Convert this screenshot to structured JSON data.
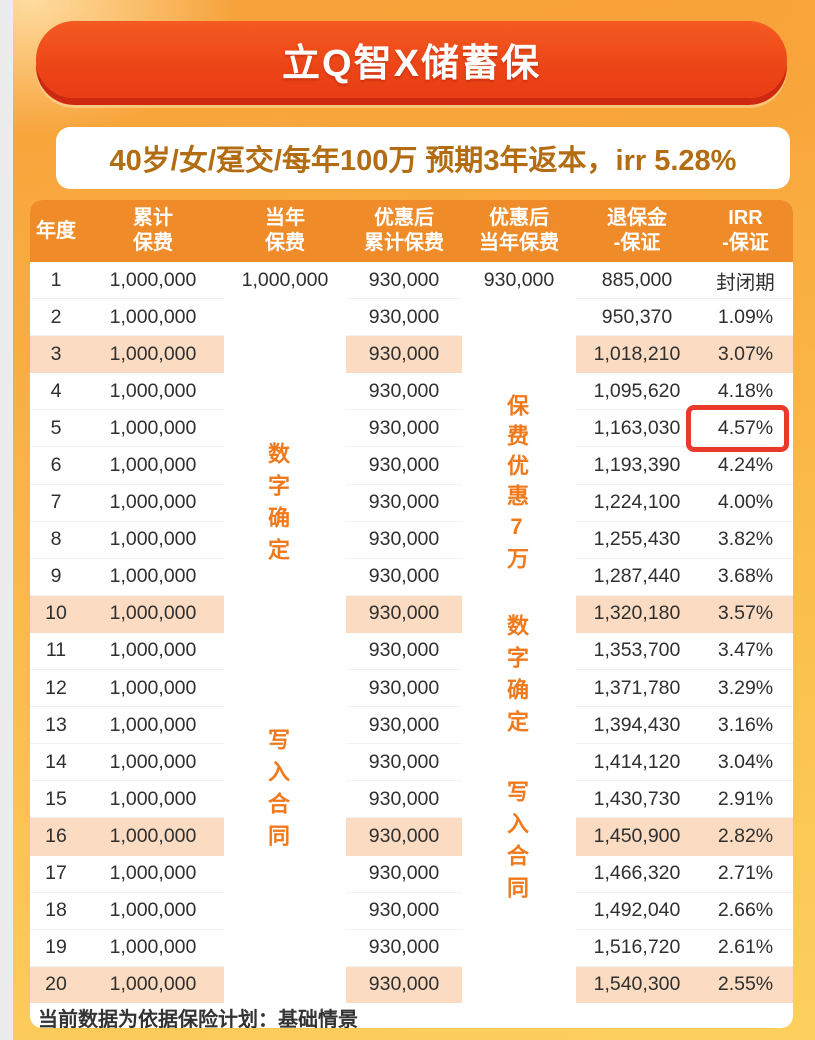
{
  "header": {
    "title": "立Q智X储蓄保",
    "subtitle": "40岁/女/趸交/每年100万 预期3年返本，irr 5.28%"
  },
  "colors": {
    "header_orange": "#ef8b28",
    "highlight_row": "#fbdcc2",
    "overlay_orange": "#f0791c",
    "banner_red": "#ea4317",
    "annotation_red": "#e8392a",
    "subtitle_brown": "#b26c12"
  },
  "table": {
    "columns": [
      "年度",
      "累计\n保费",
      "当年\n保费",
      "优惠后\n累计保费",
      "优惠后\n当年保费",
      "退保金\n-保证",
      "IRR\n-保证"
    ],
    "rows": [
      {
        "cells": [
          "1",
          "1,000,000",
          "1,000,000",
          "930,000",
          "930,000",
          "885,000",
          "封闭期"
        ],
        "highlight": false
      },
      {
        "cells": [
          "2",
          "1,000,000",
          "",
          "930,000",
          "",
          "950,370",
          "1.09%"
        ],
        "highlight": false
      },
      {
        "cells": [
          "3",
          "1,000,000",
          "",
          "930,000",
          "",
          "1,018,210",
          "3.07%"
        ],
        "highlight": true
      },
      {
        "cells": [
          "4",
          "1,000,000",
          "",
          "930,000",
          "",
          "1,095,620",
          "4.18%"
        ],
        "highlight": false
      },
      {
        "cells": [
          "5",
          "1,000,000",
          "",
          "930,000",
          "",
          "1,163,030",
          "4.57%"
        ],
        "highlight": false
      },
      {
        "cells": [
          "6",
          "1,000,000",
          "",
          "930,000",
          "",
          "1,193,390",
          "4.24%"
        ],
        "highlight": false
      },
      {
        "cells": [
          "7",
          "1,000,000",
          "",
          "930,000",
          "",
          "1,224,100",
          "4.00%"
        ],
        "highlight": false
      },
      {
        "cells": [
          "8",
          "1,000,000",
          "",
          "930,000",
          "",
          "1,255,430",
          "3.82%"
        ],
        "highlight": false
      },
      {
        "cells": [
          "9",
          "1,000,000",
          "",
          "930,000",
          "",
          "1,287,440",
          "3.68%"
        ],
        "highlight": false
      },
      {
        "cells": [
          "10",
          "1,000,000",
          "",
          "930,000",
          "",
          "1,320,180",
          "3.57%"
        ],
        "highlight": true
      },
      {
        "cells": [
          "11",
          "1,000,000",
          "",
          "930,000",
          "",
          "1,353,700",
          "3.47%"
        ],
        "highlight": false
      },
      {
        "cells": [
          "12",
          "1,000,000",
          "",
          "930,000",
          "",
          "1,371,780",
          "3.29%"
        ],
        "highlight": false
      },
      {
        "cells": [
          "13",
          "1,000,000",
          "",
          "930,000",
          "",
          "1,394,430",
          "3.16%"
        ],
        "highlight": false
      },
      {
        "cells": [
          "14",
          "1,000,000",
          "",
          "930,000",
          "",
          "1,414,120",
          "3.04%"
        ],
        "highlight": false
      },
      {
        "cells": [
          "15",
          "1,000,000",
          "",
          "930,000",
          "",
          "1,430,730",
          "2.91%"
        ],
        "highlight": false
      },
      {
        "cells": [
          "16",
          "1,000,000",
          "",
          "930,000",
          "",
          "1,450,900",
          "2.82%"
        ],
        "highlight": true
      },
      {
        "cells": [
          "17",
          "1,000,000",
          "",
          "930,000",
          "",
          "1,466,320",
          "2.71%"
        ],
        "highlight": false
      },
      {
        "cells": [
          "18",
          "1,000,000",
          "",
          "930,000",
          "",
          "1,492,040",
          "2.66%"
        ],
        "highlight": false
      },
      {
        "cells": [
          "19",
          "1,000,000",
          "",
          "930,000",
          "",
          "1,516,720",
          "2.61%"
        ],
        "highlight": false
      },
      {
        "cells": [
          "20",
          "1,000,000",
          "",
          "930,000",
          "",
          "1,540,300",
          "2.55%"
        ],
        "highlight": true
      }
    ],
    "footnote": "当前数据为依据保险计划：基础情景"
  },
  "overlays": {
    "annual_digits": "数字确定",
    "annual_contract": "写入合同",
    "disc_discount": "保费优惠7万",
    "disc_digits": "数字确定",
    "disc_contract": "写入合同"
  },
  "annotation": {
    "highlighted_year": "5",
    "highlighted_irr": "4.57%"
  }
}
